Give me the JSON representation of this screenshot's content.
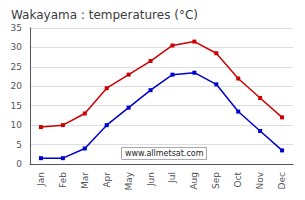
{
  "chart_data": {
    "type": "line",
    "title": "Wakayama : temperatures (°C)",
    "categories": [
      "Jan",
      "Feb",
      "Mar",
      "Apr",
      "May",
      "Jun",
      "Jul",
      "Aug",
      "Sep",
      "Oct",
      "Nov",
      "Dec"
    ],
    "series": [
      {
        "color": "#cc0000",
        "marker": "square",
        "values": [
          9.5,
          10.0,
          13.0,
          19.5,
          23.0,
          26.5,
          30.5,
          31.5,
          28.5,
          22.0,
          17.0,
          12.0
        ]
      },
      {
        "color": "#0000cc",
        "marker": "square",
        "values": [
          1.5,
          1.5,
          4.0,
          10.0,
          14.5,
          19.0,
          23.0,
          23.5,
          20.5,
          13.5,
          8.5,
          3.5
        ]
      }
    ],
    "ylim": [
      0,
      35
    ],
    "yticks": [
      0,
      5,
      10,
      15,
      20,
      25,
      30,
      35
    ],
    "grid": true,
    "annotations": [
      "www.allmetsat.com"
    ]
  }
}
